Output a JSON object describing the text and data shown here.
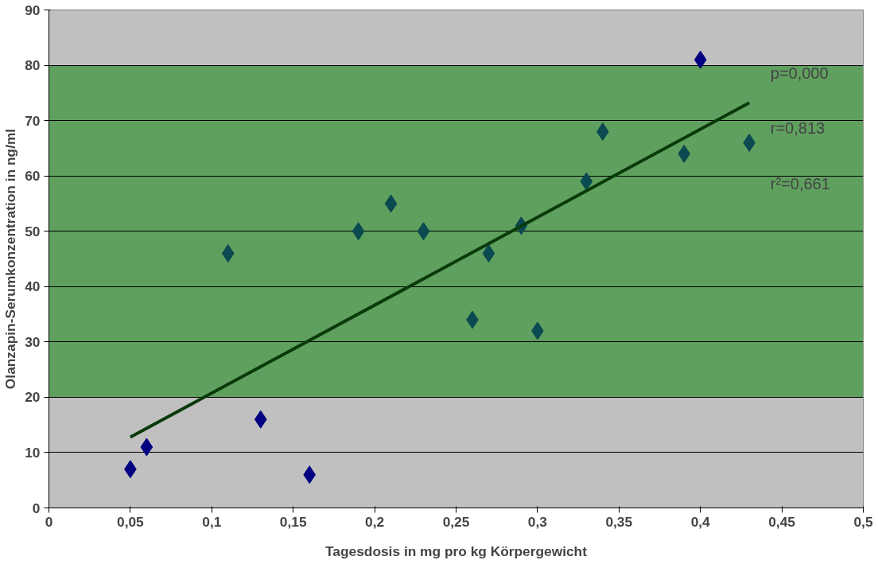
{
  "chart_data": {
    "type": "scatter",
    "xlabel": "Tagesdosis in mg pro kg Körpergewicht",
    "ylabel": "Olanzapin-Serumkonzentration in ng/ml",
    "xlim": [
      0,
      0.5
    ],
    "ylim": [
      0,
      90
    ],
    "xticks": [
      0,
      {
        "value": 0.05,
        "label": "0,05"
      },
      {
        "value": 0.1,
        "label": "0,1"
      },
      {
        "value": 0.15,
        "label": "0,15"
      },
      {
        "value": 0.2,
        "label": "0,2"
      },
      {
        "value": 0.25,
        "label": "0,25"
      },
      {
        "value": 0.3,
        "label": "0,3"
      },
      {
        "value": 0.35,
        "label": "0,35"
      },
      {
        "value": 0.4,
        "label": "0,4"
      },
      {
        "value": 0.45,
        "label": "0,45"
      },
      {
        "value": 0.5,
        "label": "0,5"
      }
    ],
    "yticks": [
      0,
      10,
      20,
      30,
      40,
      50,
      60,
      70,
      80,
      90
    ],
    "grid": "y",
    "bands": [
      {
        "axis": "y",
        "from": 20,
        "to": 80,
        "color": "#5fa05f"
      }
    ],
    "series": [
      {
        "marker": "diamond",
        "x": [
          0.05,
          0.06,
          0.11,
          0.13,
          0.16,
          0.19,
          0.21,
          0.23,
          0.26,
          0.27,
          0.29,
          0.3,
          0.33,
          0.34,
          0.39,
          0.4,
          0.43
        ],
        "values": [
          7,
          11,
          46,
          16,
          6,
          50,
          55,
          50,
          34,
          46,
          51,
          32,
          59,
          68,
          64,
          81,
          66
        ],
        "colors": [
          "#000080",
          "#000080",
          "#0a4a50",
          "#000080",
          "#000080",
          "#0a4a50",
          "#0a4a50",
          "#0a4a50",
          "#0a4a50",
          "#0a4a50",
          "#0a4a50",
          "#0a4a50",
          "#0a4a50",
          "#0a4a50",
          "#0a4a50",
          "#000080",
          "#0a4a50"
        ]
      },
      {
        "type": "line",
        "x": [
          0.05,
          0.43
        ],
        "values": [
          12.8,
          73.2
        ],
        "color": "#0a3a0a"
      }
    ],
    "annotations": [
      "p=0,000",
      "r=0,813",
      "r²=0,661"
    ]
  }
}
